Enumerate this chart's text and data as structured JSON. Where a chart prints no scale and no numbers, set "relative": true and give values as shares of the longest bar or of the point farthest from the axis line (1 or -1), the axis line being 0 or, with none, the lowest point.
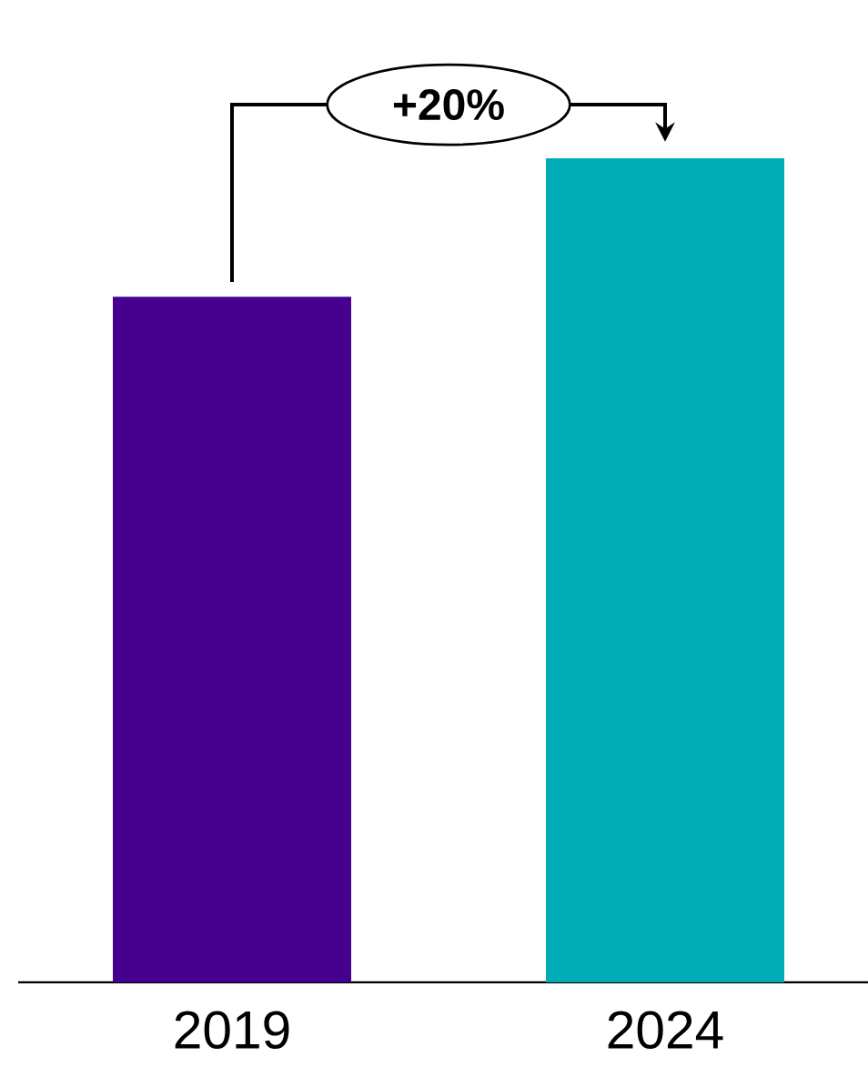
{
  "chart_data": {
    "type": "bar",
    "relative": true,
    "categories": [
      "2019",
      "2024"
    ],
    "values": [
      0.832,
      1
    ],
    "colors": [
      "#45008f",
      "#00adb5"
    ],
    "annotations": [
      "+20%"
    ]
  }
}
